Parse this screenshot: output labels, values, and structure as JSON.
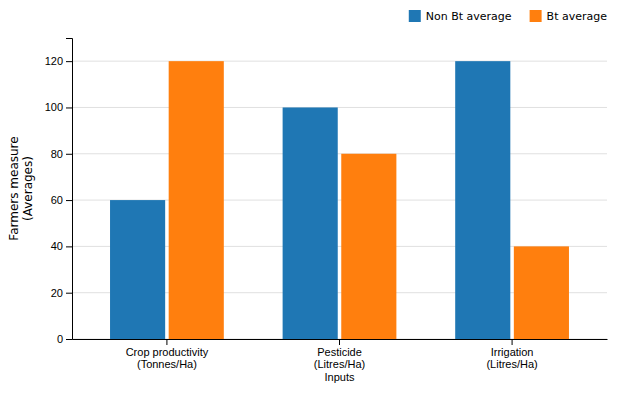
{
  "chart_data": {
    "type": "bar",
    "categories": [
      "Crop productivity\n(Tonnes/Ha)",
      "Pesticide\n(Litres/Ha)\nInputs",
      "Irrigation\n(Litres/Ha)"
    ],
    "series": [
      {
        "name": "Non Bt average",
        "values": [
          60,
          100,
          120
        ]
      },
      {
        "name": "Bt average",
        "values": [
          120,
          80,
          40
        ]
      }
    ],
    "ylabel": "Farmers measure\n(Averages)",
    "ylim": [
      0,
      130
    ],
    "yticks": [
      0,
      20,
      40,
      60,
      80,
      100,
      120
    ],
    "grid": true,
    "legend": "upper right"
  }
}
